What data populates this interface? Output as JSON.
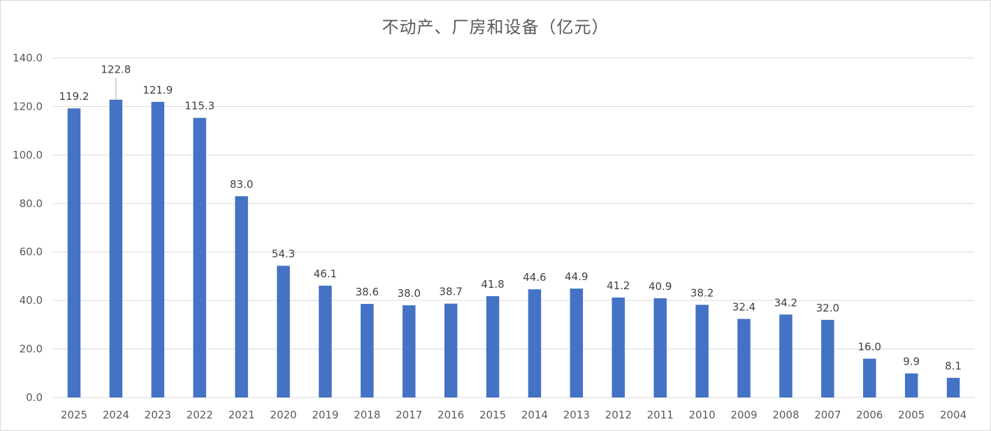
{
  "chart_data": {
    "type": "bar",
    "title": "不动产、厂房和设备（亿元）",
    "xlabel": "",
    "ylabel": "",
    "categories": [
      "2025",
      "2024",
      "2023",
      "2022",
      "2021",
      "2020",
      "2019",
      "2018",
      "2017",
      "2016",
      "2015",
      "2014",
      "2013",
      "2012",
      "2011",
      "2010",
      "2009",
      "2008",
      "2007",
      "2006",
      "2005",
      "2004"
    ],
    "values": [
      119.2,
      122.8,
      121.9,
      115.3,
      83.0,
      54.3,
      46.1,
      38.6,
      38.0,
      38.7,
      41.8,
      44.6,
      44.9,
      41.2,
      40.9,
      38.2,
      32.4,
      34.2,
      32.0,
      16.0,
      9.9,
      8.1
    ],
    "value_labels": [
      "119.2",
      "122.8",
      "121.9",
      "115.3",
      "83.0",
      "54.3",
      "46.1",
      "38.6",
      "38.0",
      "38.7",
      "41.8",
      "44.6",
      "44.9",
      "41.2",
      "40.9",
      "38.2",
      "32.4",
      "34.2",
      "32.0",
      "16.0",
      "9.9",
      "8.1"
    ],
    "ylim": [
      0,
      140
    ],
    "y_ticks": [
      "0.0",
      "20.0",
      "40.0",
      "60.0",
      "80.0",
      "100.0",
      "120.0",
      "140.0"
    ],
    "grid": true,
    "legend": "none",
    "bar_color": "#4472c4",
    "leader_line_on": "2024"
  }
}
